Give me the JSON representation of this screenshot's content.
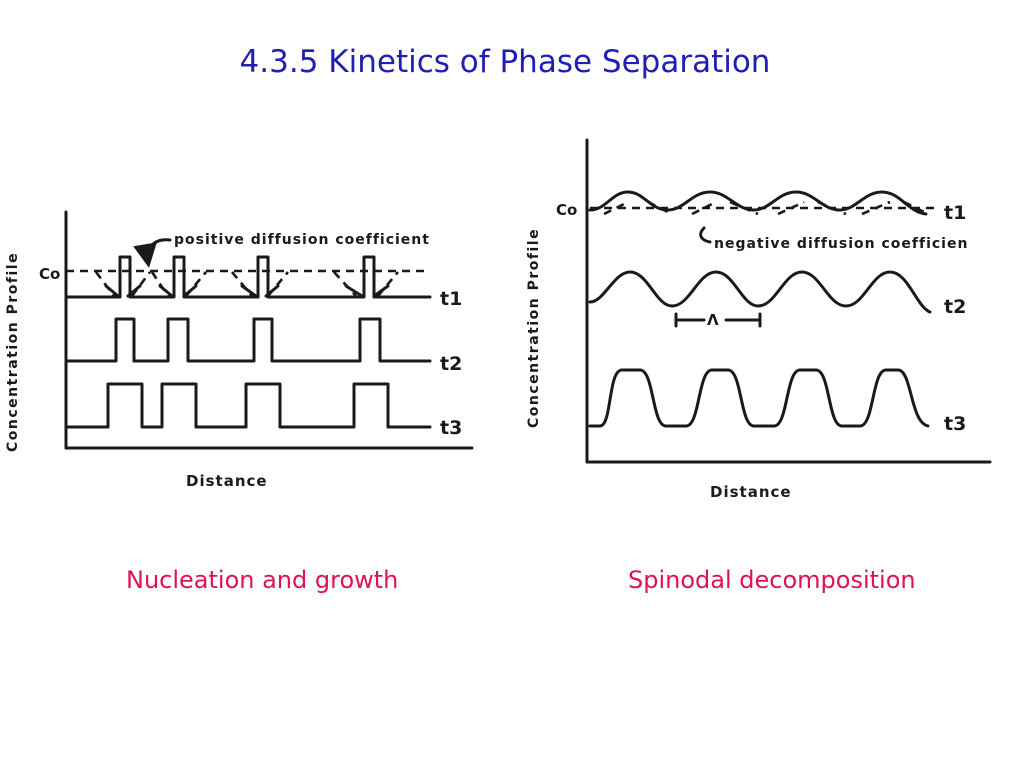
{
  "title": "4.3.5 Kinetics of Phase Separation",
  "captions": {
    "left": "Nucleation and growth",
    "right": "Spinodal decomposition"
  },
  "left_diagram": {
    "ylabel": "Concentration Profile",
    "xlabel": "Distance",
    "c0_label": "Co",
    "annotation": "positive diffusion coefficient",
    "curve_labels": [
      "t1",
      "t2",
      "t3"
    ]
  },
  "right_diagram": {
    "ylabel": "Concentration Profile",
    "xlabel": "Distance",
    "c0_label": "Co",
    "annotation": "negative diffusion coefficien",
    "wavelength_label": "Λ",
    "curve_labels": [
      "t1",
      "t2",
      "t3"
    ]
  }
}
